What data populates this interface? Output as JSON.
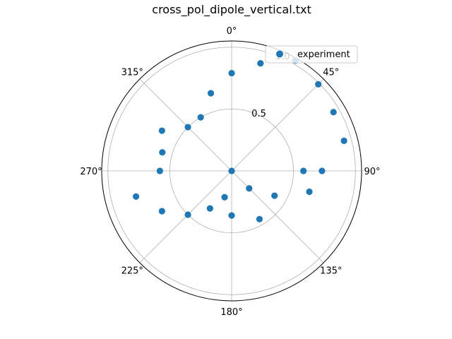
{
  "chart_data": {
    "type": "scatter",
    "projection": "polar",
    "title": "cross_pol_dipole_vertical.txt",
    "theta_zero_location": "N",
    "theta_direction": "clockwise",
    "angle_ticks": [
      "0°",
      "45°",
      "90°",
      "135°",
      "180°",
      "225°",
      "270°",
      "315°"
    ],
    "radial_ticks": [
      "0.5",
      "1.0"
    ],
    "rlim": [
      0,
      1.05
    ],
    "grid": true,
    "legend_position": "upper-right",
    "series": [
      {
        "name": "experiment",
        "color": "#1f77b4",
        "marker": "circle",
        "points": [
          {
            "theta": 0,
            "r": 0.79
          },
          {
            "theta": 15,
            "r": 0.9
          },
          {
            "theta": 30,
            "r": 1.03
          },
          {
            "theta": 45,
            "r": 0.99
          },
          {
            "theta": 60,
            "r": 0.95
          },
          {
            "theta": 75,
            "r": 0.94
          },
          {
            "theta": 90,
            "r": 0.73
          },
          {
            "theta": 90,
            "r": 0.58
          },
          {
            "theta": 105,
            "r": 0.65
          },
          {
            "theta": 120,
            "r": 0.4
          },
          {
            "theta": 135,
            "r": 0.2
          },
          {
            "theta": 150,
            "r": 0.45
          },
          {
            "theta": 180,
            "r": 0.36
          },
          {
            "theta": 195,
            "r": 0.22
          },
          {
            "theta": 210,
            "r": 0.35
          },
          {
            "theta": 225,
            "r": 0.5
          },
          {
            "theta": 240,
            "r": 0.65
          },
          {
            "theta": 255,
            "r": 0.8
          },
          {
            "theta": 270,
            "r": 0.58
          },
          {
            "theta": 285,
            "r": 0.58
          },
          {
            "theta": 300,
            "r": 0.65
          },
          {
            "theta": 315,
            "r": 0.5
          },
          {
            "theta": 330,
            "r": 0.5
          },
          {
            "theta": 345,
            "r": 0.65
          },
          {
            "theta": 0,
            "r": 0.0
          }
        ]
      }
    ]
  }
}
